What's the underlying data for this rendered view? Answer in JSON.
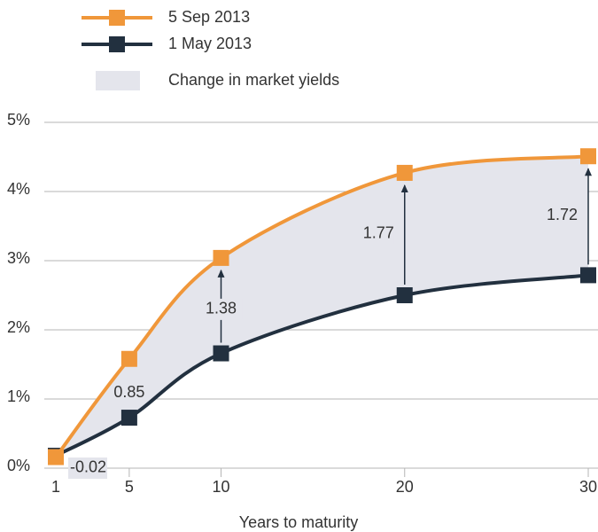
{
  "chart_data": {
    "type": "line",
    "x_label": "Years to maturity",
    "x": [
      1,
      5,
      10,
      20,
      30
    ],
    "xlim": [
      1,
      30
    ],
    "xticks": [
      1,
      5,
      10,
      20,
      30
    ],
    "ylim": [
      0,
      5
    ],
    "yticks": [
      {
        "value": 0,
        "label": "0%"
      },
      {
        "value": 1,
        "label": "1%"
      },
      {
        "value": 2,
        "label": "2%"
      },
      {
        "value": 3,
        "label": "3%"
      },
      {
        "value": 4,
        "label": "4%"
      },
      {
        "value": 5,
        "label": "5%"
      }
    ],
    "grid": true,
    "series": [
      {
        "name": "5 Sep 2013",
        "color": "#f0973a",
        "values": [
          0.16,
          1.58,
          3.04,
          4.27,
          4.51
        ]
      },
      {
        "name": "1 May 2013",
        "color": "#22303f",
        "values": [
          0.18,
          0.73,
          1.66,
          2.5,
          2.79
        ]
      }
    ],
    "area": {
      "name": "Change in market yields",
      "color": "#e4e5ec"
    },
    "annotations": [
      "-0.02",
      "0.85",
      "1.38",
      "1.77",
      "1.72"
    ]
  }
}
